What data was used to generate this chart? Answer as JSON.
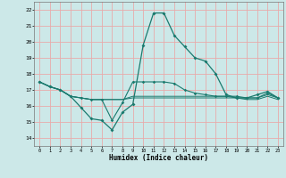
{
  "xlabel": "Humidex (Indice chaleur)",
  "background_color": "#cce8e8",
  "grid_color": "#e8aaaa",
  "line_color": "#1a7a6e",
  "xlim": [
    -0.5,
    23.5
  ],
  "ylim": [
    13.5,
    22.5
  ],
  "yticks": [
    14,
    15,
    16,
    17,
    18,
    19,
    20,
    21,
    22
  ],
  "xticks": [
    0,
    1,
    2,
    3,
    4,
    5,
    6,
    7,
    8,
    9,
    10,
    11,
    12,
    13,
    14,
    15,
    16,
    17,
    18,
    19,
    20,
    21,
    22,
    23
  ],
  "series": [
    [
      17.5,
      17.2,
      17.0,
      16.6,
      15.9,
      15.2,
      15.1,
      14.5,
      15.6,
      16.1,
      19.8,
      21.8,
      21.8,
      20.4,
      19.7,
      19.0,
      18.8,
      18.0,
      16.7,
      16.5,
      16.5,
      16.7,
      16.9,
      16.5
    ],
    [
      17.5,
      17.2,
      17.0,
      16.6,
      16.5,
      16.4,
      16.4,
      15.1,
      16.2,
      17.5,
      17.5,
      17.5,
      17.5,
      17.4,
      17.0,
      16.8,
      16.7,
      16.6,
      16.6,
      16.6,
      16.5,
      16.5,
      16.8,
      16.5
    ],
    [
      17.5,
      17.2,
      17.0,
      16.6,
      16.5,
      16.4,
      16.4,
      16.4,
      16.4,
      16.6,
      16.6,
      16.6,
      16.6,
      16.6,
      16.6,
      16.6,
      16.6,
      16.6,
      16.6,
      16.5,
      16.5,
      16.5,
      16.7,
      16.5
    ],
    [
      17.5,
      17.2,
      17.0,
      16.6,
      16.5,
      16.4,
      16.4,
      16.4,
      16.4,
      16.5,
      16.5,
      16.5,
      16.5,
      16.5,
      16.5,
      16.5,
      16.5,
      16.5,
      16.5,
      16.5,
      16.4,
      16.4,
      16.6,
      16.4
    ]
  ],
  "marker_indices_s0": [
    0,
    1,
    2,
    3,
    4,
    5,
    6,
    7,
    8,
    9,
    10,
    11,
    12,
    13,
    14,
    15,
    16,
    17,
    18,
    19,
    20,
    21,
    22,
    23
  ],
  "marker_indices_s1": [
    0,
    1,
    2,
    3,
    7,
    9,
    10,
    11,
    12,
    13,
    14,
    15,
    16,
    17,
    18,
    19,
    20,
    21,
    22,
    23
  ]
}
